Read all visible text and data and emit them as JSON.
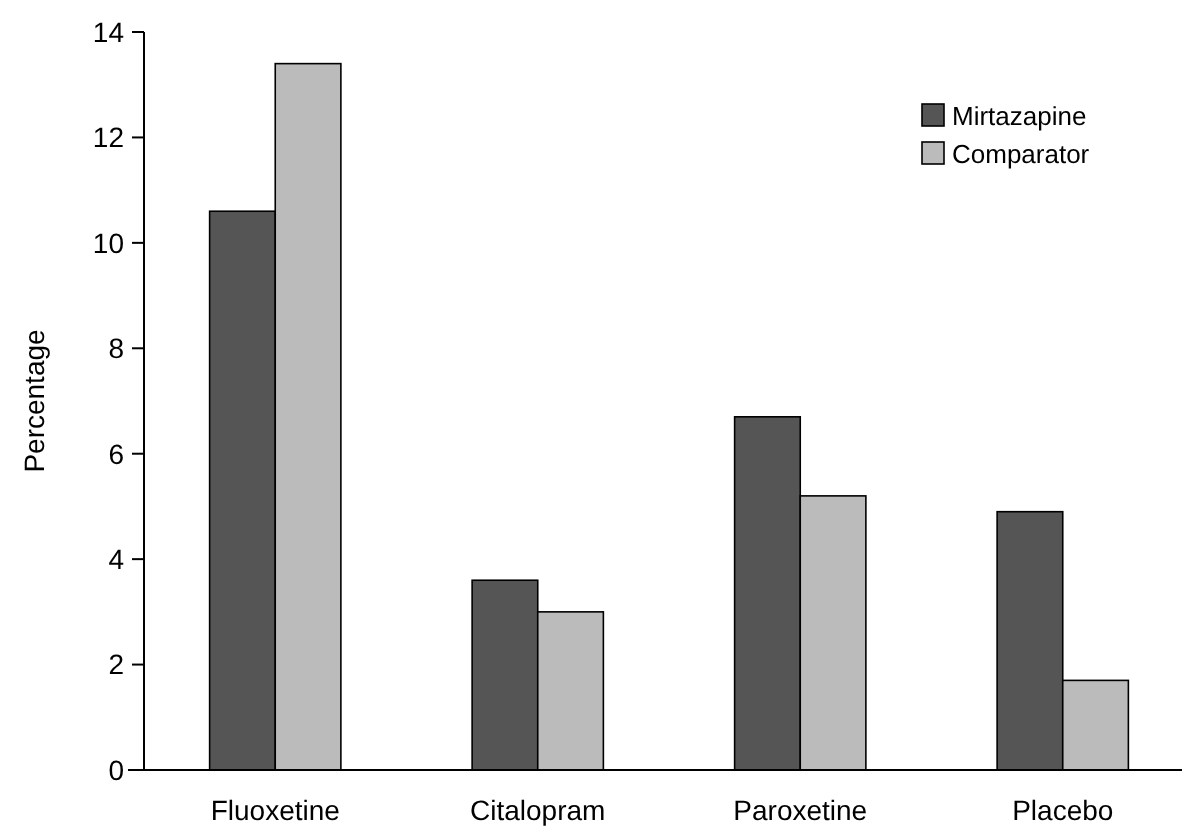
{
  "chart_data": {
    "type": "bar",
    "ylabel": "Percentage",
    "categories": [
      "Fluoxetine",
      "Citalopram",
      "Paroxetine",
      "Placebo"
    ],
    "series": [
      {
        "name": "Mirtazapine",
        "color": "#555555",
        "values": [
          10.6,
          3.6,
          6.7,
          4.9
        ]
      },
      {
        "name": "Comparator",
        "color": "#bbbbbb",
        "values": [
          13.4,
          3.0,
          5.2,
          1.7
        ]
      }
    ],
    "ylim": [
      0,
      14
    ],
    "yticks": [
      0,
      2,
      4,
      6,
      8,
      10,
      12,
      14
    ],
    "legend": "top right"
  }
}
